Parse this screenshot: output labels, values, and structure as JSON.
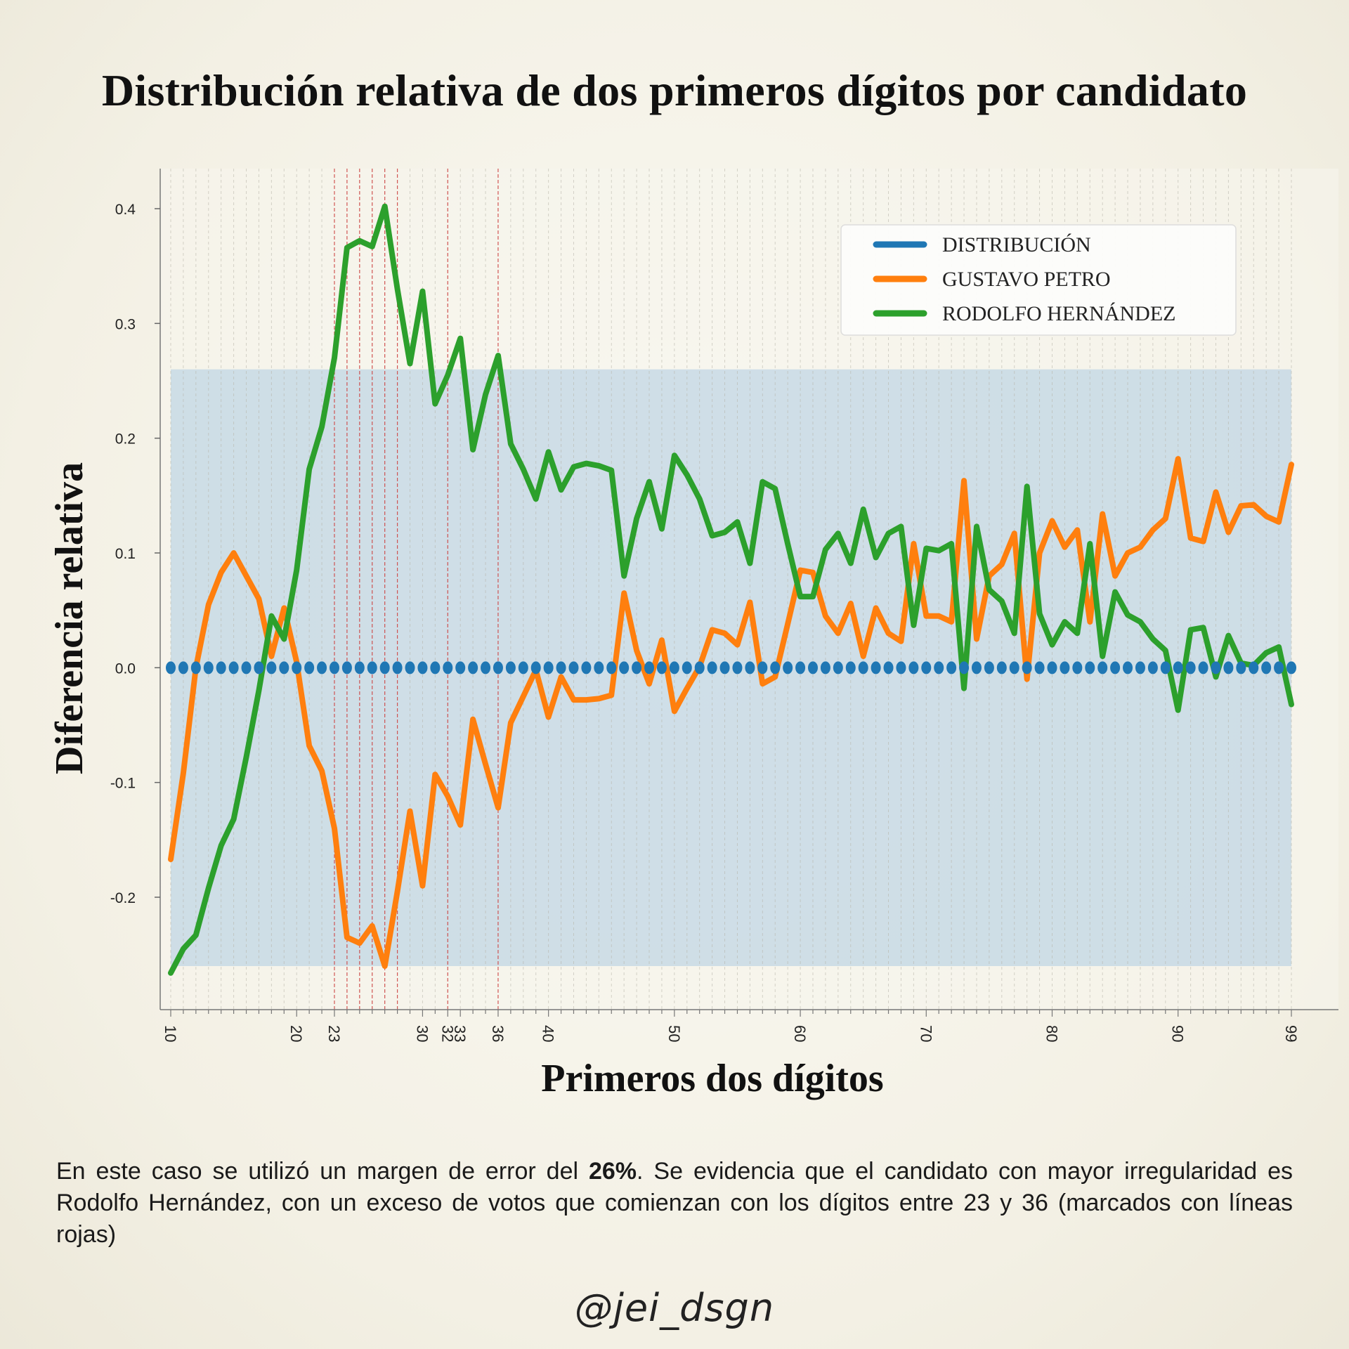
{
  "title": "Distribución relativa de dos primeros dígitos por candidato",
  "caption": {
    "part1": "En este caso se utilizó un margen de error del ",
    "bold": "26%",
    "part2": ". Se evidencia que el candidato con mayor irregularidad es Rodolfo Hernández, con un exceso de votos que comienzan con los dígitos entre 23 y 36 (marcados con líneas rojas)"
  },
  "handle": "@jei_dsgn",
  "chart_data": {
    "type": "line",
    "title": "Distribución relativa de dos primeros dígitos por candidato",
    "xlabel": "Primeros dos dígitos",
    "ylabel": "Diferencia relativa",
    "xlim": [
      10,
      99
    ],
    "ylim": [
      -0.3,
      0.43
    ],
    "yticks": [
      -0.2,
      -0.1,
      0.0,
      0.1,
      0.2,
      0.3,
      0.4
    ],
    "ytick_labels": [
      "-0.2",
      "-0.1",
      "0.0",
      "0.1",
      "0.2",
      "0.3",
      "0.4"
    ],
    "xticks": [
      10,
      20,
      23,
      30,
      32,
      33,
      36,
      40,
      50,
      60,
      70,
      80,
      90,
      99
    ],
    "xtick_labels": [
      "10",
      "20",
      "23",
      "30",
      "32",
      "33",
      "36",
      "40",
      "50",
      "60",
      "70",
      "80",
      "90",
      "99"
    ],
    "error_band": [
      -0.26,
      0.26
    ],
    "red_lines": [
      23,
      24,
      25,
      26,
      27,
      28,
      32,
      36
    ],
    "legend_position": "top-right",
    "x_start": 10,
    "series": [
      {
        "name": "DISTRIBUCIÓN",
        "color": "#1f77b4",
        "style": "dots",
        "values": [
          0,
          0,
          0,
          0,
          0,
          0,
          0,
          0,
          0,
          0,
          0,
          0,
          0,
          0,
          0,
          0,
          0,
          0,
          0,
          0,
          0,
          0,
          0,
          0,
          0,
          0,
          0,
          0,
          0,
          0,
          0,
          0,
          0,
          0,
          0,
          0,
          0,
          0,
          0,
          0,
          0,
          0,
          0,
          0,
          0,
          0,
          0,
          0,
          0,
          0,
          0,
          0,
          0,
          0,
          0,
          0,
          0,
          0,
          0,
          0,
          0,
          0,
          0,
          0,
          0,
          0,
          0,
          0,
          0,
          0,
          0,
          0,
          0,
          0,
          0,
          0,
          0,
          0,
          0,
          0,
          0,
          0,
          0,
          0,
          0,
          0,
          0,
          0,
          0,
          0
        ]
      },
      {
        "name": "GUSTAVO PETRO",
        "color": "#ff7f0e",
        "style": "line",
        "values": [
          -0.167,
          -0.092,
          0.0,
          0.055,
          0.083,
          0.1,
          0.08,
          0.06,
          0.01,
          0.052,
          0.005,
          -0.068,
          -0.09,
          -0.14,
          -0.235,
          -0.24,
          -0.225,
          -0.26,
          -0.195,
          -0.125,
          -0.19,
          -0.093,
          -0.112,
          -0.137,
          -0.045,
          -0.084,
          -0.122,
          -0.048,
          -0.025,
          -0.002,
          -0.043,
          -0.008,
          -0.028,
          -0.028,
          -0.027,
          -0.024,
          0.065,
          0.015,
          -0.014,
          0.024,
          -0.038,
          -0.018,
          0.001,
          0.033,
          0.03,
          0.02,
          0.057,
          -0.014,
          -0.008,
          0.038,
          0.085,
          0.083,
          0.045,
          0.03,
          0.056,
          0.01,
          0.052,
          0.03,
          0.023,
          0.108,
          0.045,
          0.045,
          0.04,
          0.163,
          0.025,
          0.08,
          0.09,
          0.117,
          -0.01,
          0.1,
          0.128,
          0.105,
          0.12,
          0.04,
          0.134,
          0.08,
          0.1,
          0.105,
          0.12,
          0.13,
          0.182,
          0.113,
          0.11,
          0.153,
          0.118,
          0.141,
          0.142,
          0.132,
          0.127,
          0.177
        ]
      },
      {
        "name": "RODOLFO HERNÁNDEZ",
        "color": "#2ca02c",
        "style": "line",
        "values": [
          -0.266,
          -0.245,
          -0.233,
          -0.192,
          -0.155,
          -0.132,
          -0.078,
          -0.02,
          0.045,
          0.025,
          0.085,
          0.173,
          0.21,
          0.27,
          0.366,
          0.372,
          0.367,
          0.402,
          0.33,
          0.265,
          0.328,
          0.23,
          0.255,
          0.287,
          0.19,
          0.238,
          0.272,
          0.195,
          0.173,
          0.147,
          0.188,
          0.155,
          0.175,
          0.178,
          0.176,
          0.172,
          0.08,
          0.13,
          0.162,
          0.121,
          0.185,
          0.168,
          0.147,
          0.115,
          0.118,
          0.127,
          0.091,
          0.162,
          0.156,
          0.108,
          0.062,
          0.062,
          0.103,
          0.117,
          0.091,
          0.138,
          0.096,
          0.117,
          0.123,
          0.037,
          0.104,
          0.102,
          0.108,
          -0.018,
          0.123,
          0.068,
          0.058,
          0.03,
          0.158,
          0.047,
          0.02,
          0.04,
          0.03,
          0.108,
          0.01,
          0.066,
          0.046,
          0.04,
          0.025,
          0.015,
          -0.037,
          0.033,
          0.035,
          -0.008,
          0.028,
          0.004,
          0.002,
          0.013,
          0.018,
          -0.032
        ]
      }
    ]
  }
}
